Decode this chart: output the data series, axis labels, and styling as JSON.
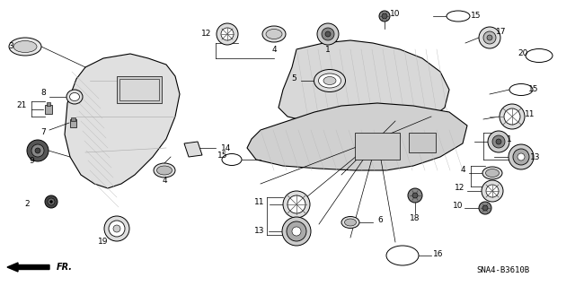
{
  "bg_color": "#ffffff",
  "diagram_code": "SNA4-B3610B",
  "fr_label": "FR.",
  "fig_width": 6.4,
  "fig_height": 3.19,
  "lw_struct": 0.8,
  "lw_part": 0.7,
  "lw_leader": 0.5
}
